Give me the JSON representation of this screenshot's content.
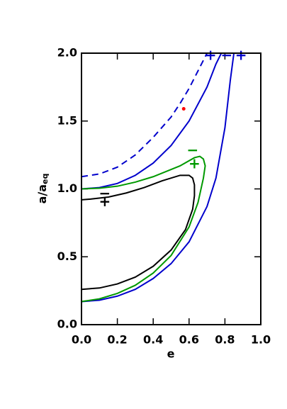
{
  "chart_data": {
    "type": "line",
    "xlabel": "e",
    "ylabel": "a/a",
    "ylabel_sub": "eq",
    "xlim": [
      0,
      1
    ],
    "ylim": [
      0,
      2
    ],
    "xticks": [
      {
        "value": 0,
        "label": "0.0"
      },
      {
        "value": 0.2,
        "label": "0.2"
      },
      {
        "value": 0.4,
        "label": "0.4"
      },
      {
        "value": 0.6,
        "label": "0.6"
      },
      {
        "value": 0.8,
        "label": "0.8"
      },
      {
        "value": 1,
        "label": "1.0"
      }
    ],
    "yticks": [
      {
        "value": 0,
        "label": "0.0"
      },
      {
        "value": 0.5,
        "label": "0.5"
      },
      {
        "value": 1,
        "label": "1.0"
      },
      {
        "value": 1.5,
        "label": "1.5"
      },
      {
        "value": 2,
        "label": "2.0"
      }
    ],
    "series": [
      {
        "color": "#0000cc",
        "dashed": true,
        "x": [
          0,
          0.1,
          0.2,
          0.3,
          0.4,
          0.5,
          0.55,
          0.6,
          0.65,
          0.7
        ],
        "values": [
          1.09,
          1.11,
          1.16,
          1.25,
          1.38,
          1.53,
          1.63,
          1.74,
          1.87,
          2.0
        ]
      },
      {
        "color": "#0000cc",
        "dashed": false,
        "x": [
          0,
          0.1,
          0.2,
          0.3,
          0.4,
          0.5,
          0.6,
          0.7,
          0.75,
          0.78
        ],
        "values": [
          1.0,
          1.01,
          1.04,
          1.1,
          1.19,
          1.32,
          1.5,
          1.75,
          1.92,
          2.0
        ]
      },
      {
        "color": "#0000cc",
        "dashed": false,
        "x": [
          0,
          0.1,
          0.2,
          0.3,
          0.4,
          0.5,
          0.6,
          0.7,
          0.75,
          0.8,
          0.83,
          0.85
        ],
        "values": [
          0.17,
          0.18,
          0.21,
          0.26,
          0.34,
          0.45,
          0.61,
          0.87,
          1.08,
          1.45,
          1.8,
          2.0
        ]
      },
      {
        "color": "#009900",
        "dashed": false,
        "x": [
          0,
          0.1,
          0.2,
          0.3,
          0.4,
          0.5,
          0.6,
          0.65,
          0.68,
          0.69,
          0.68,
          0.66,
          0.63,
          0.55,
          0.4,
          0.3,
          0.2,
          0.1,
          0
        ],
        "values": [
          0.17,
          0.19,
          0.23,
          0.29,
          0.38,
          0.51,
          0.72,
          0.9,
          1.08,
          1.17,
          1.22,
          1.24,
          1.23,
          1.17,
          1.09,
          1.05,
          1.02,
          1.005,
          1.0
        ]
      },
      {
        "color": "#000000",
        "dashed": false,
        "x": [
          0,
          0.1,
          0.2,
          0.3,
          0.4,
          0.5,
          0.58,
          0.62,
          0.63,
          0.63,
          0.62,
          0.6,
          0.55,
          0.45,
          0.35,
          0.25,
          0.15,
          0.05,
          0
        ],
        "values": [
          0.26,
          0.27,
          0.3,
          0.35,
          0.43,
          0.55,
          0.7,
          0.85,
          0.95,
          1.03,
          1.08,
          1.1,
          1.1,
          1.06,
          1.01,
          0.97,
          0.94,
          0.925,
          0.92
        ]
      }
    ],
    "points": [
      {
        "x": 0.57,
        "y": 1.59,
        "color": "#ff0000"
      }
    ],
    "annotations": [
      {
        "text": "−",
        "x": 0.13,
        "y": 0.96,
        "color": "#000000"
      },
      {
        "text": "+",
        "x": 0.13,
        "y": 0.9,
        "color": "#000000"
      },
      {
        "text": "−",
        "x": 0.62,
        "y": 1.28,
        "color": "#009900"
      },
      {
        "text": "+",
        "x": 0.63,
        "y": 1.18,
        "color": "#009900"
      },
      {
        "text": "+",
        "x": 0.72,
        "y": 1.98,
        "color": "#0000cc"
      },
      {
        "text": "−",
        "x": 0.81,
        "y": 1.98,
        "color": "#0000cc"
      },
      {
        "text": "+",
        "x": 0.89,
        "y": 1.98,
        "color": "#0000cc"
      }
    ]
  }
}
